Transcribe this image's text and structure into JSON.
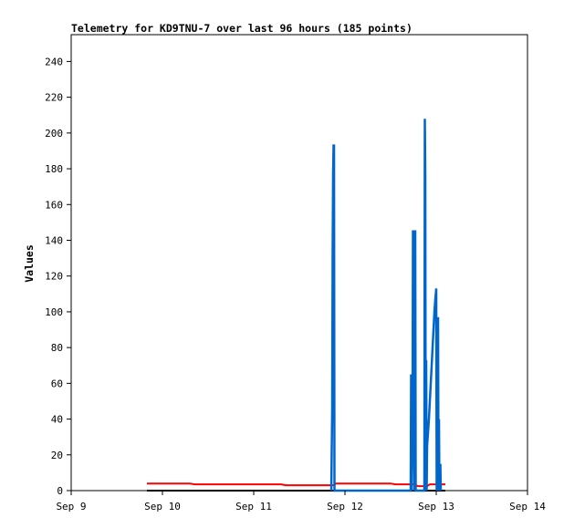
{
  "chart_data": {
    "type": "line",
    "title": "Telemetry for KD9TNU-7 over last 96 hours (185 points)",
    "ylabel": "Values",
    "xlabel": "",
    "ylim": [
      0,
      255
    ],
    "y_ticks": [
      0,
      20,
      40,
      60,
      80,
      100,
      120,
      140,
      160,
      180,
      200,
      220,
      240
    ],
    "xlim": [
      0,
      5
    ],
    "x_ticks": [
      {
        "v": 0,
        "label": "Sep 9"
      },
      {
        "v": 1,
        "label": "Sep 10"
      },
      {
        "v": 2,
        "label": "Sep 11"
      },
      {
        "v": 3,
        "label": "Sep 12"
      },
      {
        "v": 4,
        "label": "Sep 13"
      },
      {
        "v": 5,
        "label": "Sep 14"
      }
    ],
    "grid": false,
    "series": [
      {
        "color": "#000000",
        "points": [
          [
            0.83,
            0
          ],
          [
            4.1,
            0
          ]
        ]
      },
      {
        "color": "#ff0000",
        "points": [
          [
            0.83,
            4
          ],
          [
            1.3,
            4
          ],
          [
            1.35,
            3.5
          ],
          [
            2.3,
            3.5
          ],
          [
            2.35,
            3
          ],
          [
            2.88,
            3
          ],
          [
            2.9,
            4
          ],
          [
            3.5,
            4
          ],
          [
            3.55,
            3.5
          ],
          [
            3.75,
            3.5
          ],
          [
            3.8,
            2.5
          ],
          [
            3.9,
            2.5
          ],
          [
            3.93,
            3.5
          ],
          [
            4.1,
            3.5
          ]
        ]
      },
      {
        "color": "#0066cc",
        "points": [
          [
            2.85,
            0
          ],
          [
            2.86,
            45
          ],
          [
            2.865,
            133
          ],
          [
            2.87,
            177
          ],
          [
            2.875,
            193
          ],
          [
            2.88,
            193
          ],
          [
            2.885,
            0
          ],
          [
            3.72,
            0
          ],
          [
            3.725,
            65
          ],
          [
            3.73,
            0
          ],
          [
            3.74,
            33
          ],
          [
            3.745,
            145
          ],
          [
            3.755,
            145
          ],
          [
            3.76,
            0
          ],
          [
            3.765,
            145
          ],
          [
            3.77,
            145
          ],
          [
            3.775,
            0
          ],
          [
            3.87,
            0
          ],
          [
            3.875,
            208
          ],
          [
            3.88,
            177
          ],
          [
            3.885,
            0
          ],
          [
            3.89,
            73
          ],
          [
            3.895,
            0
          ],
          [
            3.9,
            25
          ],
          [
            3.92,
            40
          ],
          [
            3.94,
            60
          ],
          [
            3.96,
            80
          ],
          [
            3.98,
            100
          ],
          [
            3.99,
            107
          ],
          [
            4.0,
            113
          ],
          [
            4.005,
            0
          ],
          [
            4.01,
            40
          ],
          [
            4.015,
            0
          ],
          [
            4.02,
            97
          ],
          [
            4.025,
            0
          ],
          [
            4.03,
            40
          ],
          [
            4.035,
            0
          ],
          [
            4.045,
            15
          ],
          [
            4.05,
            0
          ]
        ]
      }
    ]
  }
}
